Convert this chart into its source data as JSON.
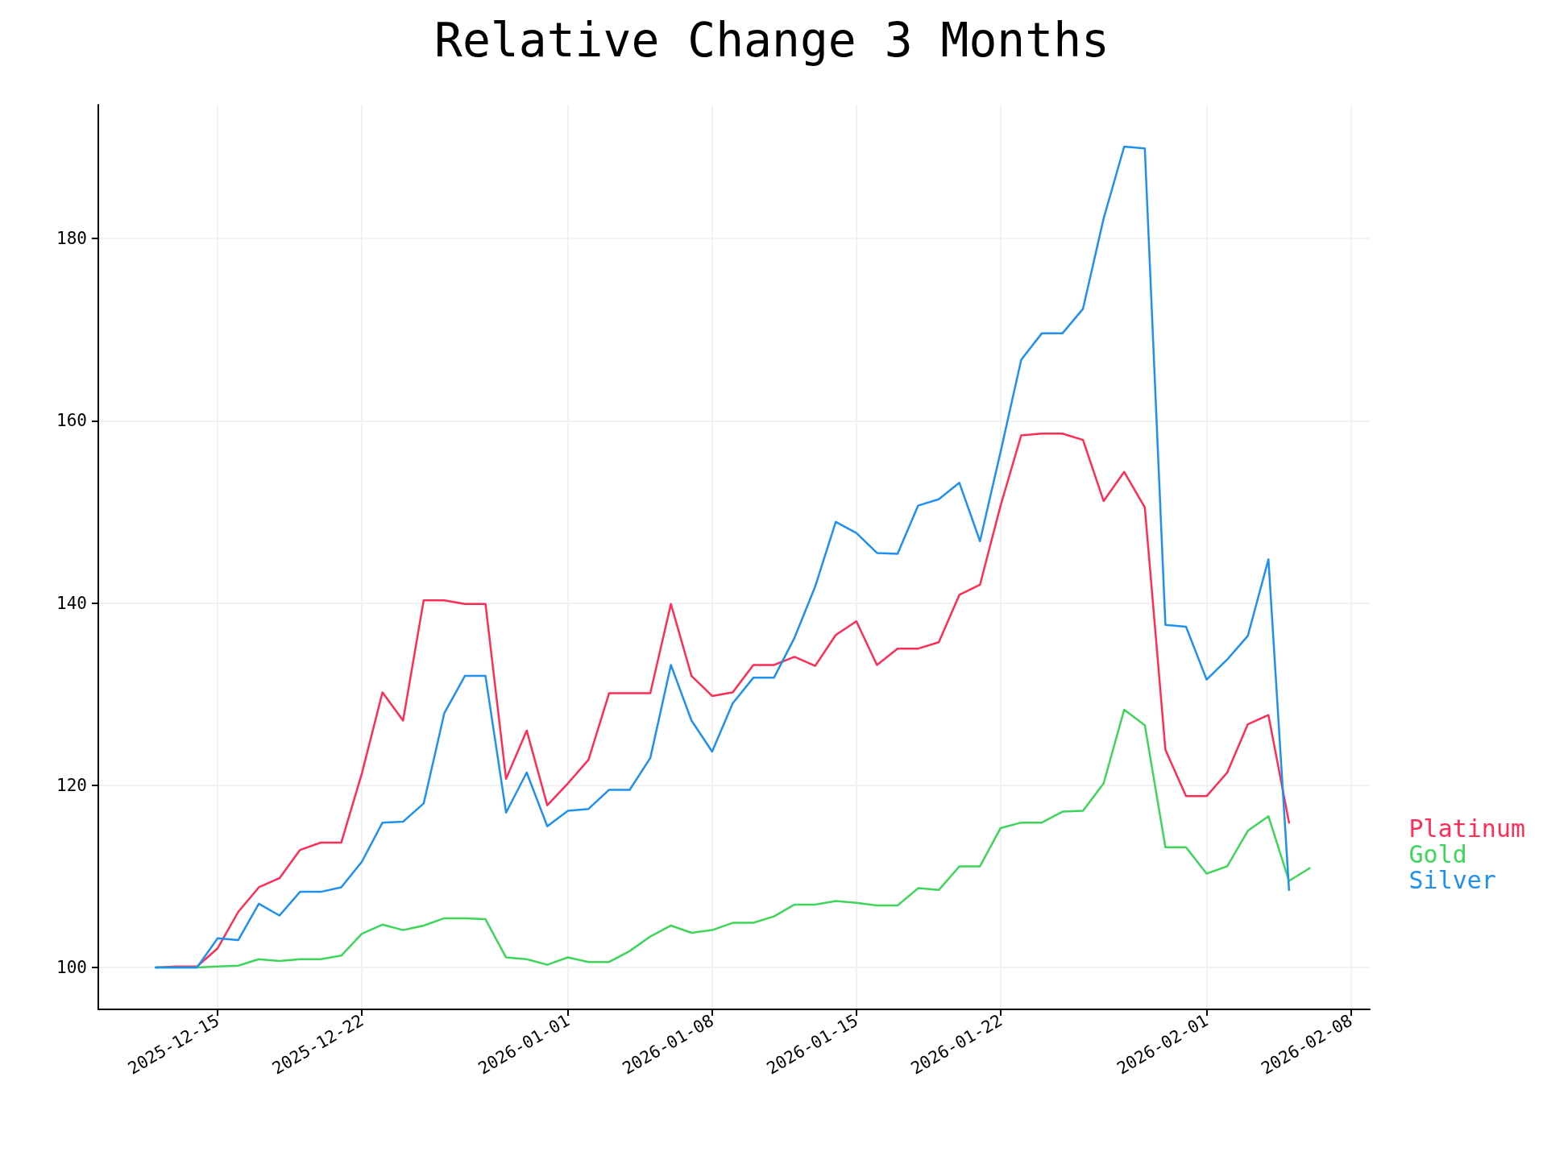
{
  "chart_data": {
    "type": "line",
    "title": "Relative Change 3 Months",
    "x": [
      "2025-12-12",
      "2025-12-13",
      "2025-12-14",
      "2025-12-15",
      "2025-12-16",
      "2025-12-17",
      "2025-12-18",
      "2025-12-19",
      "2025-12-20",
      "2025-12-21",
      "2025-12-22",
      "2025-12-23",
      "2025-12-24",
      "2025-12-25",
      "2025-12-26",
      "2025-12-27",
      "2025-12-28",
      "2025-12-29",
      "2025-12-30",
      "2025-12-31",
      "2026-01-01",
      "2026-01-02",
      "2026-01-03",
      "2026-01-04",
      "2026-01-05",
      "2026-01-06",
      "2026-01-07",
      "2026-01-08",
      "2026-01-09",
      "2026-01-10",
      "2026-01-11",
      "2026-01-12",
      "2026-01-13",
      "2026-01-14",
      "2026-01-15",
      "2026-01-16",
      "2026-01-17",
      "2026-01-18",
      "2026-01-19",
      "2026-01-20",
      "2026-01-21",
      "2026-01-22",
      "2026-01-23",
      "2026-01-24",
      "2026-01-25",
      "2026-01-26",
      "2026-01-27",
      "2026-01-28",
      "2026-01-29",
      "2026-01-30",
      "2026-01-31",
      "2026-02-01",
      "2026-02-02",
      "2026-02-03",
      "2026-02-04",
      "2026-02-05",
      "2026-02-06"
    ],
    "series": [
      {
        "name": "Platinum",
        "color": "#ff2d55",
        "values": [
          100,
          100.1,
          100.1,
          102.1,
          106.1,
          108.8,
          109.8,
          112.9,
          113.7,
          113.7,
          121.3,
          130.2,
          127.1,
          140.3,
          140.3,
          139.9,
          139.9,
          120.7,
          126,
          117.8,
          120.2,
          122.8,
          130.1,
          130.1,
          130.1,
          139.9,
          132,
          129.8,
          130.2,
          133.2,
          133.2,
          134.1,
          133.1,
          136.5,
          138,
          133.2,
          135,
          135,
          135.7,
          140.9,
          142,
          150.7,
          158.4,
          158.6,
          158.6,
          157.9,
          151.2,
          154.4,
          150.5,
          123.9,
          118.8,
          118.8,
          121.4,
          126.7,
          127.7,
          115.9,
          null
        ]
      },
      {
        "name": "Gold",
        "color": "#3dd65a",
        "values": [
          100,
          100,
          100,
          100.1,
          100.2,
          100.9,
          100.7,
          100.9,
          100.9,
          101.3,
          103.7,
          104.7,
          104.1,
          104.6,
          105.4,
          105.4,
          105.3,
          101.1,
          100.9,
          100.3,
          101.1,
          100.6,
          100.6,
          101.8,
          103.4,
          104.6,
          103.8,
          104.1,
          104.9,
          104.9,
          105.6,
          106.9,
          106.9,
          107.3,
          107.1,
          106.8,
          106.8,
          108.7,
          108.5,
          111.1,
          111.1,
          115.3,
          115.9,
          115.9,
          117.1,
          117.2,
          120.2,
          128.3,
          126.6,
          113.2,
          113.2,
          110.3,
          111.1,
          115,
          116.6,
          109.5,
          110.9
        ]
      },
      {
        "name": "Silver",
        "color": "#1e90f0",
        "values": [
          100,
          100,
          100,
          103.2,
          103,
          107,
          105.7,
          108.3,
          108.3,
          108.8,
          111.6,
          115.9,
          116,
          118,
          127.9,
          132,
          132,
          117,
          121.4,
          115.5,
          117.2,
          117.4,
          119.5,
          119.5,
          123,
          133.2,
          127.1,
          123.7,
          129,
          131.8,
          131.8,
          136.2,
          141.8,
          148.9,
          147.7,
          145.5,
          145.4,
          150.7,
          151.4,
          153.2,
          146.8,
          156.6,
          166.7,
          169.6,
          169.6,
          172.3,
          182.2,
          190.1,
          189.9,
          137.6,
          137.4,
          131.6,
          133.8,
          136.4,
          144.8,
          108.5,
          null
        ]
      }
    ],
    "xlim": [
      "2025-12-09T05:00",
      "2026-02-08T22:00"
    ],
    "xticks": [
      "2025-12-15",
      "2025-12-22",
      "2026-01-01",
      "2026-01-08",
      "2026-01-15",
      "2026-01-22",
      "2026-02-01",
      "2026-02-08"
    ],
    "ylim": [
      95.4,
      194.7
    ],
    "yticks": [
      100,
      120,
      140,
      160,
      180
    ],
    "grid": true,
    "legend": "right",
    "marker": "none",
    "line_style": "solid"
  }
}
